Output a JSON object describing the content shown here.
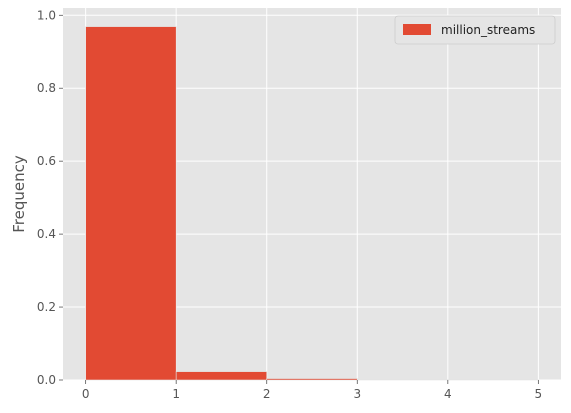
{
  "chart_data": {
    "type": "bar",
    "xlabel": "",
    "ylabel": "Frequency",
    "xlim": [
      -0.25,
      5.25
    ],
    "ylim": [
      0,
      1.0
    ],
    "xticks": [
      0,
      1,
      2,
      3,
      4,
      5
    ],
    "xtick_labels": [
      "0",
      "1",
      "2",
      "3",
      "4",
      "5"
    ],
    "yticks": [
      0.0,
      0.2,
      0.4,
      0.6,
      0.8,
      1.0
    ],
    "ytick_labels": [
      "0.0",
      "0.2",
      "0.4",
      "0.6",
      "0.8",
      "1.0"
    ],
    "grid": true,
    "legend_position": "top-right",
    "bins": [
      [
        0,
        1
      ],
      [
        1,
        2
      ],
      [
        2,
        3
      ],
      [
        3,
        4
      ],
      [
        4,
        5
      ]
    ],
    "series": [
      {
        "name": "million_streams",
        "color": "#E24A33",
        "values": [
          0.969,
          0.023,
          0.004,
          0.001,
          0.001
        ]
      }
    ],
    "background_color": "#E5E5E5",
    "grid_color": "#FFFFFF",
    "tick_label_color": "#555555"
  }
}
